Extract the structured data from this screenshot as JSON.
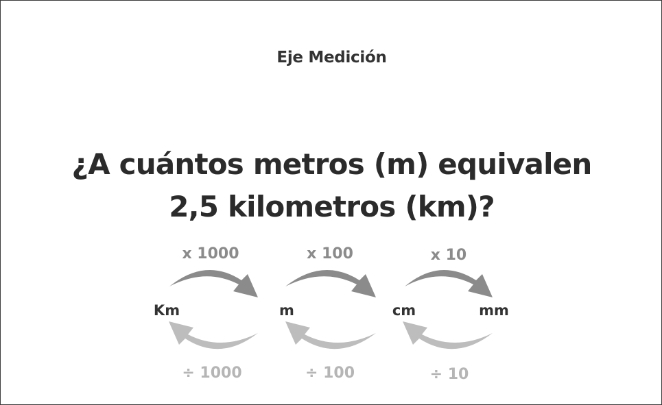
{
  "slide": {
    "eyebrow": "Eje Medición",
    "question_line1": "¿A cuántos metros (m) equivalen",
    "question_line2": "2,5 kilometros (km)?"
  },
  "conversion": {
    "units": [
      "Km",
      "m",
      "cm",
      "mm"
    ],
    "multiply_labels": [
      "x 1000",
      "x 100",
      "x 10"
    ],
    "divide_labels": [
      "÷ 1000",
      "÷ 100",
      "÷ 10"
    ]
  },
  "colors": {
    "multiply_arrow": "#8b8b8b",
    "divide_arrow": "#bdbdbd",
    "text": "#2b2b2b"
  }
}
